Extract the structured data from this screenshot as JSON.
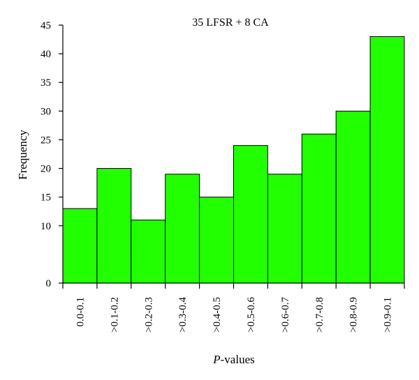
{
  "chart_data": {
    "type": "bar",
    "title": "35 LFSR + 8 CA",
    "xlabel": "P-values",
    "xlabel_italic_part": "P",
    "xlabel_rest": "-values",
    "ylabel": "Frequency",
    "categories": [
      "0.0-0.1",
      ">0.1-0.2",
      ">0.2-0.3",
      ">0.3-0.4",
      ">0.4-0.5",
      ">0.5-0.6",
      ">0.6-0.7",
      ">0.7-0.8",
      ">0.8-0.9",
      ">0.9-0.1"
    ],
    "values": [
      13,
      20,
      11,
      19,
      15,
      24,
      19,
      26,
      30,
      43
    ],
    "ylim": [
      0,
      45
    ],
    "yticks": [
      0,
      10,
      15,
      20,
      25,
      30,
      35,
      40,
      45
    ],
    "bar_color": "#22ff00",
    "grid": false,
    "legend": "none"
  }
}
